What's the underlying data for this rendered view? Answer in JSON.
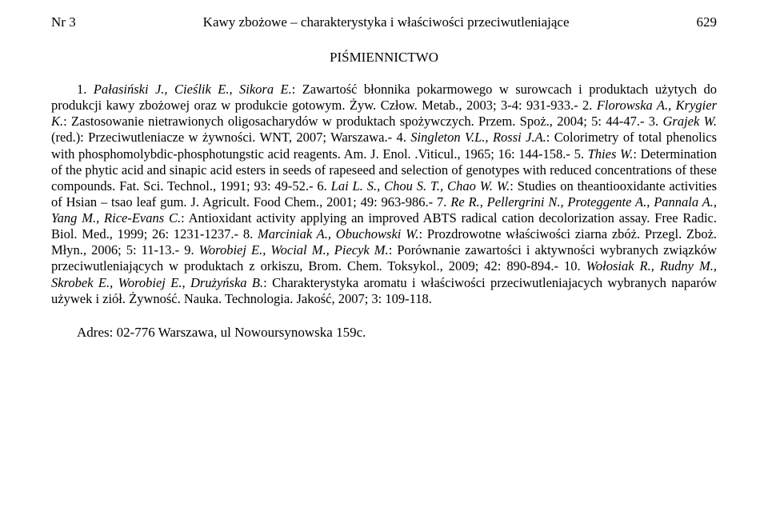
{
  "header": {
    "issue": "Nr 3",
    "running_title": "Kawy zbożowe – charakterystyka i właściwości przeciwutleniające",
    "page_number": "629"
  },
  "section_title": "PIŚMIENNICTWO",
  "refs": {
    "lead": "1. ",
    "auth1": "Pałasiński J., Cieślik E., Sikora E.",
    "t1": ": Zawartość błonnika pokarmowego w surowcach i produktach użytych do produkcji kawy zbożowej oraz w produkcie gotowym. Żyw. Człow. Metab., 2003; 3-4: 931-933.- 2. ",
    "auth2": "Florowska A., Krygier K.",
    "t2": ": Zastosowanie nietrawionych oligosacharydów w produktach spożywczych. Przem. Spoż., 2004; 5: 44-47.- 3. ",
    "auth3": "Grajek W.",
    "t3": " (red.): Przeciwutleniacze w żywności. WNT, 2007; Warszawa.- 4. ",
    "auth4": "Singleton V.L., Rossi J.A.",
    "t4": ": Colorimetry of total phenolics with phosphomolybdic-phosphotungstic acid reagents. Am. J. Enol. .Viticul., 1965; 16: 144-158.- 5. ",
    "auth5": "Thies W.",
    "t5": ": Determination of the phytic acid and sinapic acid esters in seeds of rapeseed and selection of genotypes with reduced concentrations of these compounds. Fat. Sci. Technol., 1991; 93: 49-52.- 6. ",
    "auth6": "Lai L. S., Chou S. T., Chao W. W.",
    "t6": ": Studies on theantiooxidante activities of Hsian – tsao leaf gum. J. Agricult. Food Chem., 2001; 49: 963-986.- 7. ",
    "auth7": "Re R., Pellergrini N., Proteggente A., Pannala A., Yang M., Rice-Evans C.",
    "t7": ": Antioxidant activity applying an improved ABTS radical cation decolorization assay. Free Radic. Biol. Med., 1999; 26: 1231-1237.- 8. ",
    "auth8": "Marciniak A., Obuchowski W.",
    "t8": ": Prozdrowotne właściwości ziarna zbóż. Przegl. Zboż. Młyn., 2006; 5: 11-13.- 9. ",
    "auth9": "Worobiej E., Wocial M., Piecyk M.",
    "t9": ": Porównanie zawartości i aktywności wybranych związków przeciwutleniających w produktach z orkiszu, Brom. Chem. Toksykol., 2009; 42: 890-894.- 10. ",
    "auth10": "Wołosiak R., Rudny M., Skrobek E., Worobiej E., Drużyńska B.",
    "t10": ": Charakterystyka aromatu i właściwości przeciwutleniajacych wybranych naparów używek i ziół. Żywność. Nauka. Technologia. Jakość, 2007; 3: 109-118."
  },
  "address": "Adres: 02-776 Warszawa, ul Nowoursynowska 159c."
}
